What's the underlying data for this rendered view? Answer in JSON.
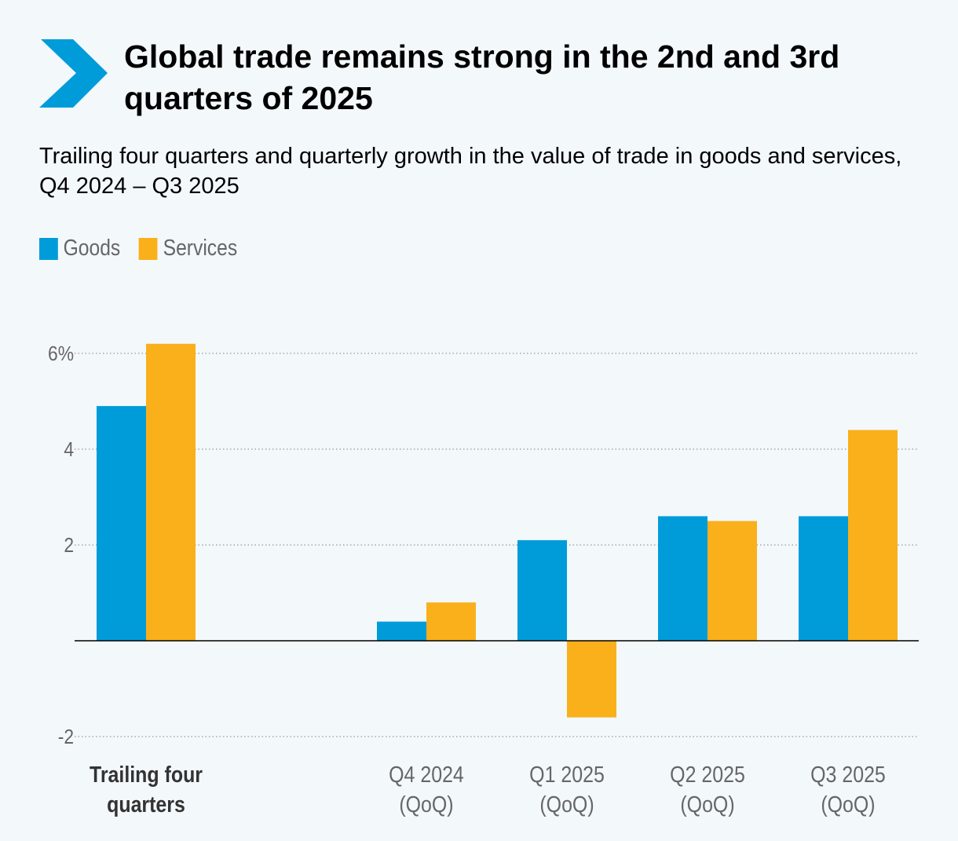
{
  "title": "Global trade remains strong in the 2nd and 3rd quarters of 2025",
  "subtitle": "Trailing four quarters and quarterly growth in the value of trade in goods and services, Q4 2024 – Q3 2025",
  "colors": {
    "goods": "#009cd9",
    "services": "#f9b01a",
    "logo": "#009cd9"
  },
  "chart_data": {
    "type": "bar",
    "title": "Global trade remains strong in the 2nd and 3rd quarters of 2025",
    "categories": [
      {
        "line1": "Trailing four",
        "line2": "quarters",
        "bold": true
      },
      {
        "line1": "Q4 2024",
        "line2": "(QoQ)",
        "bold": false
      },
      {
        "line1": "Q1 2025",
        "line2": "(QoQ)",
        "bold": false
      },
      {
        "line1": "Q2 2025",
        "line2": "(QoQ)",
        "bold": false
      },
      {
        "line1": "Q3 2025",
        "line2": "(QoQ)",
        "bold": false
      }
    ],
    "series": [
      {
        "name": "Goods",
        "values": [
          4.9,
          0.4,
          2.1,
          2.6,
          2.6
        ]
      },
      {
        "name": "Services",
        "values": [
          6.2,
          0.8,
          -1.6,
          2.5,
          4.4
        ]
      }
    ],
    "yticks": [
      {
        "v": 6,
        "label": "6%"
      },
      {
        "v": 4,
        "label": "4"
      },
      {
        "v": 2,
        "label": "2"
      },
      {
        "v": -2,
        "label": "-2"
      }
    ],
    "ylim": [
      -2,
      6
    ],
    "xlabel": "",
    "ylabel": "",
    "grid": true,
    "legend": "top-left"
  }
}
